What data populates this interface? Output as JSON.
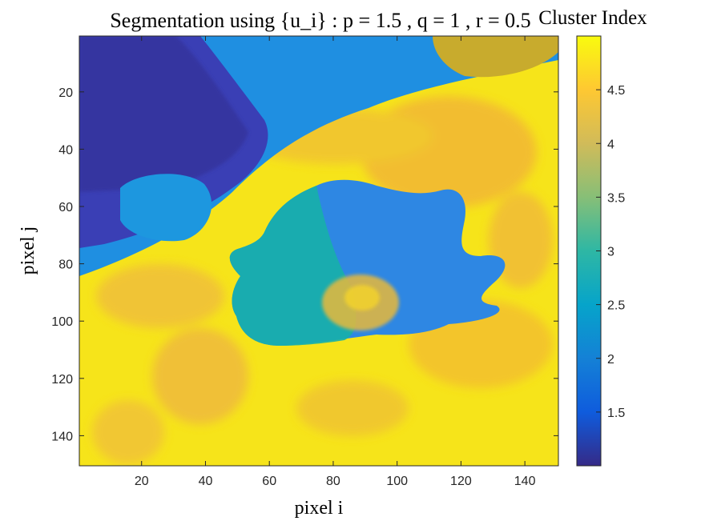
{
  "chart_data": {
    "type": "heatmap",
    "title": "Segmentation using {u_i} : p = 1.5 , q = 1 , r = 0.5",
    "xlabel": "pixel i",
    "ylabel": "pixel j",
    "xlim": [
      0.5,
      150.5
    ],
    "ylim": [
      0.5,
      150.5
    ],
    "y_direction": "reverse",
    "x_ticks": [
      20,
      40,
      60,
      80,
      100,
      120,
      140
    ],
    "y_ticks": [
      20,
      40,
      60,
      80,
      100,
      120,
      140
    ],
    "grid": false,
    "colormap": "parula",
    "color_range": [
      1.0,
      5.0
    ],
    "colorbar": {
      "title": "Cluster Index",
      "ticks": [
        1.5,
        2,
        2.5,
        3,
        3.5,
        4,
        4.5
      ]
    },
    "regions": [
      {
        "label": "dark-blue sky, top-left",
        "approx_value": 1.3
      },
      {
        "label": "light-blue area, top-middle",
        "approx_value": 2.1
      },
      {
        "label": "olive patch, top-right corner",
        "approx_value": 4.1
      },
      {
        "label": "flower petals",
        "approx_value": 2.3
      },
      {
        "label": "flower center",
        "approx_value": 3.5
      },
      {
        "label": "yellow foreground",
        "approx_value": 4.8
      }
    ],
    "colors": {
      "parula_low": "#352a87",
      "parula_mid": "#1ab2b2",
      "parula_high": "#f9fb0e"
    }
  }
}
